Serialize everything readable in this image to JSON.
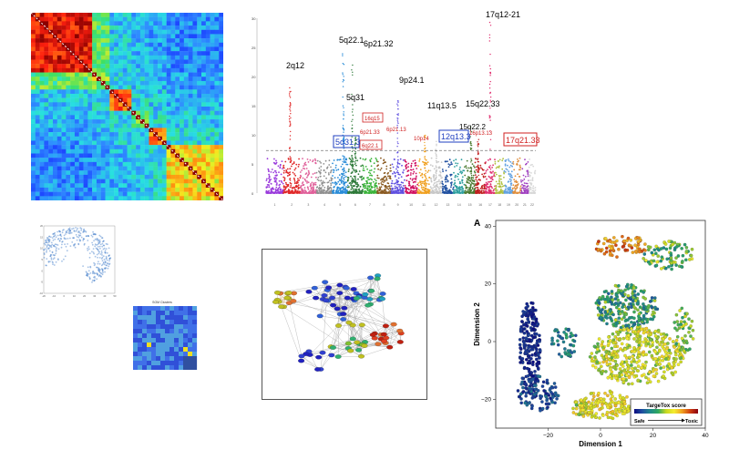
{
  "chart_data": [
    {
      "type": "heatmap",
      "panel": "correlation-matrix",
      "title": "",
      "colorscale": [
        "#1a3cff",
        "#2f8cff",
        "#28e0e0",
        "#40e060",
        "#f4f020",
        "#ff8a10",
        "#ff2010",
        "#8a0000"
      ],
      "blocks": [
        {
          "from": 0.0,
          "to": 0.32,
          "level": 6.2
        },
        {
          "from": 0.32,
          "to": 0.42,
          "level": 3.5
        },
        {
          "from": 0.42,
          "to": 0.52,
          "level": 5.5
        },
        {
          "from": 0.52,
          "to": 0.61,
          "level": 3.0
        },
        {
          "from": 0.61,
          "to": 0.7,
          "level": 5.0
        },
        {
          "from": 0.7,
          "to": 1.0,
          "level": 4.2
        }
      ]
    },
    {
      "type": "scatter",
      "panel": "manhattan-plot",
      "title": "",
      "ylim": [
        0,
        30
      ],
      "yticks": [
        "0",
        "5",
        "10",
        "15",
        "20",
        "25",
        "30"
      ],
      "threshold": 7.3,
      "chromosomes": [
        "1",
        "2",
        "3",
        "4",
        "5",
        "6",
        "7",
        "8",
        "9",
        "10",
        "11",
        "12",
        "13",
        "14",
        "15",
        "16",
        "17",
        "18",
        "19",
        "20",
        "21",
        "22"
      ],
      "chrom_colors": [
        "#9a3cdc",
        "#e02828",
        "#e0609a",
        "#909090",
        "#2a8cd8",
        "#2e7a3a",
        "#3cb43c",
        "#8a5a20",
        "#6050e0",
        "#d01060",
        "#f0a020",
        "#c8c8c8",
        "#2050a0",
        "#30a0a0",
        "#4a7a30",
        "#c02020",
        "#e03070",
        "#b0c040",
        "#60a0e0",
        "#e09040",
        "#a040c0",
        "#d8d8d8"
      ],
      "peaks": [
        {
          "chrom": 2,
          "pos": 0.4,
          "value": 18.5
        },
        {
          "chrom": 5,
          "pos": 0.7,
          "value": 24.5
        },
        {
          "chrom": 5,
          "pos": 0.75,
          "value": 14.0
        },
        {
          "chrom": 6,
          "pos": 0.3,
          "value": 22.0
        },
        {
          "chrom": 6,
          "pos": 0.5,
          "value": 10.5
        },
        {
          "chrom": 9,
          "pos": 0.5,
          "value": 16.0
        },
        {
          "chrom": 11,
          "pos": 0.6,
          "value": 10.5
        },
        {
          "chrom": 12,
          "pos": 0.5,
          "value": 9.0
        },
        {
          "chrom": 15,
          "pos": 0.6,
          "value": 12.5
        },
        {
          "chrom": 16,
          "pos": 0.3,
          "value": 9.5
        },
        {
          "chrom": 17,
          "pos": 0.5,
          "value": 29.5
        }
      ],
      "annotations_black": [
        "2q12",
        "5q22.1",
        "6p21.32",
        "9p24.1",
        "5q31",
        "11q13.5",
        "15q22.33",
        "17q12-21",
        "15q22.2"
      ],
      "annotations_red": [
        "16q15",
        "6p21.33",
        "6p21.13",
        "10p14",
        "6q22.1",
        "16p13.13"
      ],
      "annotations_boxed_blue": [
        "5q31.3",
        "12q13.3"
      ],
      "annotations_boxed_red": [
        "17q21.33"
      ]
    },
    {
      "type": "scatter",
      "panel": "embedding-scatter-small",
      "title": "",
      "xticks": [
        "-20",
        "-10",
        "0",
        "10",
        "20",
        "30",
        "40",
        "50"
      ],
      "yticks": [
        "-10",
        "-5",
        "0",
        "5",
        "10",
        "15",
        "20"
      ]
    },
    {
      "type": "heatmap",
      "panel": "som-map",
      "title": "SOM Clusters",
      "colorscale": [
        "#3050d8",
        "#4070e8",
        "#50a0e0",
        "#f0e020",
        "#3050a0"
      ]
    },
    {
      "type": "other",
      "panel": "network-graph",
      "title": "",
      "node_colors": [
        "#2020c0",
        "#3040d0",
        "#3060d8",
        "#20a0c0",
        "#30b070",
        "#80c030",
        "#c0c020",
        "#d0a030",
        "#e07030",
        "#e04020",
        "#c02010"
      ]
    },
    {
      "type": "scatter",
      "panel": "dimension-scatter",
      "title": "",
      "panel_letter": "A",
      "xlabel": "Dimension 1",
      "ylabel": "Dimension 2",
      "xlim": [
        -40,
        40
      ],
      "ylim": [
        -30,
        42
      ],
      "xticks": [
        -20,
        0,
        20,
        40
      ],
      "yticks": [
        -20,
        0,
        20,
        40
      ],
      "legend": {
        "title": "TargeTox score",
        "low": "Safe",
        "high": "Toxic",
        "placement": "bottom-right"
      },
      "colorscale": [
        "#0a0a80",
        "#1f4fa0",
        "#1f8a8a",
        "#2ea860",
        "#c8d820",
        "#f4ec30",
        "#f0a020",
        "#d04010",
        "#8a0010"
      ]
    }
  ]
}
